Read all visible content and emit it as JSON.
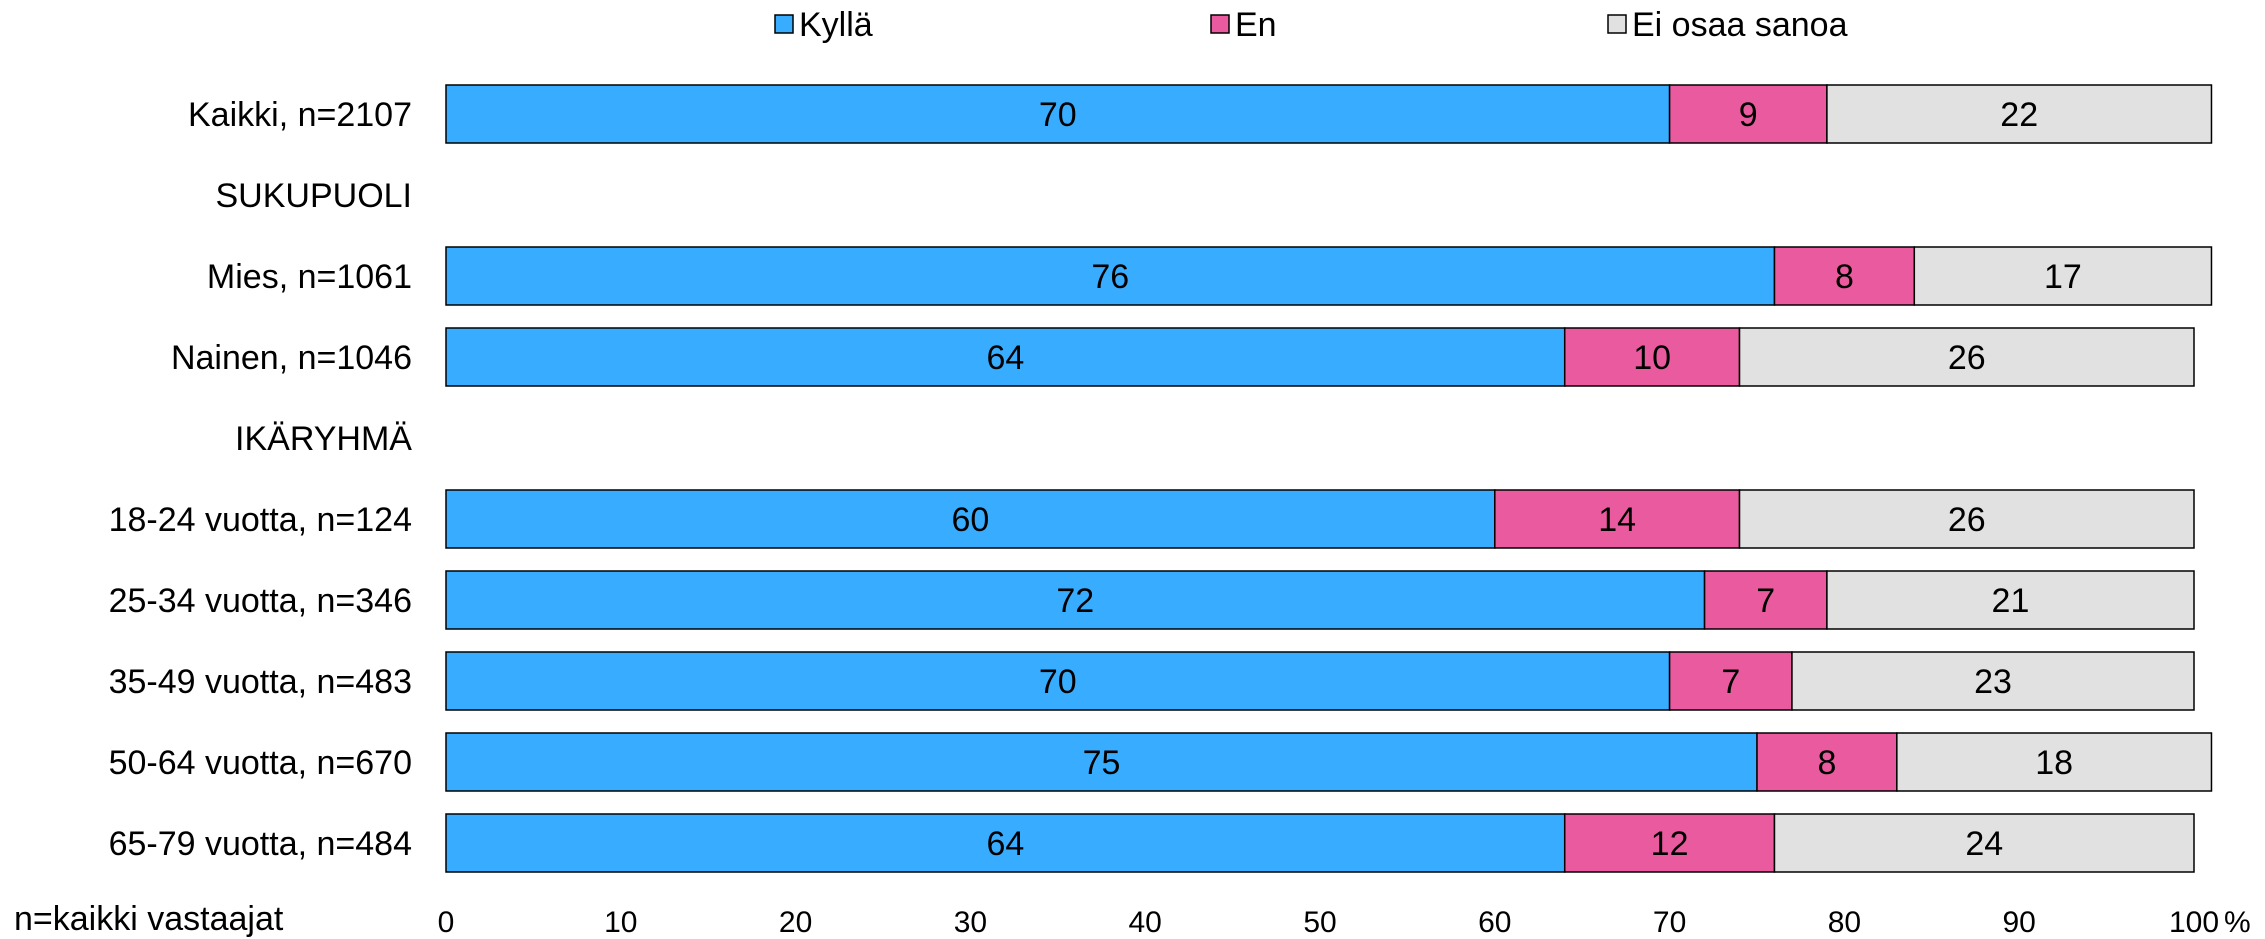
{
  "chart_data": {
    "type": "bar",
    "orientation": "horizontal",
    "stacked": true,
    "legend": {
      "placement": "top",
      "entries": [
        {
          "label": "Kyllä",
          "color": "#38adff"
        },
        {
          "label": "En",
          "color": "#ea5a9e"
        },
        {
          "label": "Ei osaa sanoa",
          "color": "#e1e1e1"
        }
      ]
    },
    "rows": [
      {
        "label": "Kaikki, n=2107",
        "kind": "bar",
        "values": [
          70,
          9,
          22
        ]
      },
      {
        "label": "SUKUPUOLI",
        "kind": "group"
      },
      {
        "label": "Mies, n=1061",
        "kind": "bar",
        "values": [
          76,
          8,
          17
        ]
      },
      {
        "label": "Nainen, n=1046",
        "kind": "bar",
        "values": [
          64,
          10,
          26
        ]
      },
      {
        "label": "IKÄRYHMÄ",
        "kind": "group"
      },
      {
        "label": "18-24 vuotta, n=124",
        "kind": "bar",
        "values": [
          60,
          14,
          26
        ]
      },
      {
        "label": "25-34 vuotta, n=346",
        "kind": "bar",
        "values": [
          72,
          7,
          21
        ]
      },
      {
        "label": "35-49 vuotta, n=483",
        "kind": "bar",
        "values": [
          70,
          7,
          23
        ]
      },
      {
        "label": "50-64 vuotta, n=670",
        "kind": "bar",
        "values": [
          75,
          8,
          18
        ]
      },
      {
        "label": "65-79 vuotta, n=484",
        "kind": "bar",
        "values": [
          64,
          12,
          24
        ]
      }
    ],
    "xlim": [
      0,
      100
    ],
    "xticks": [
      0,
      10,
      20,
      30,
      40,
      50,
      60,
      70,
      80,
      90,
      100
    ],
    "xunit": "%",
    "grid": false
  },
  "footnote": "n=kaikki vastaajat"
}
